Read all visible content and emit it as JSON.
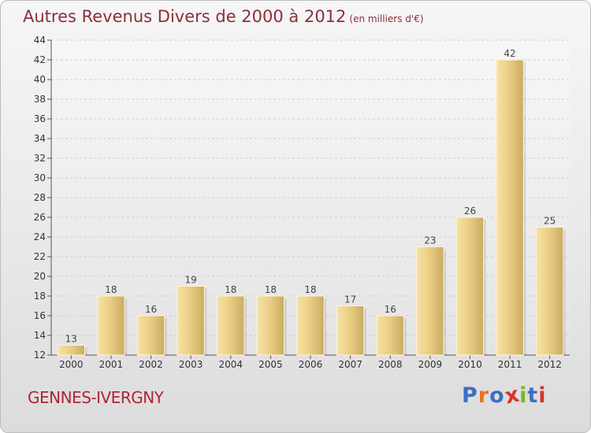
{
  "header": {
    "title": "Autres Revenus Divers de 2000 à 2012",
    "subtitle": "(en milliers d'€)"
  },
  "footer": {
    "commune": "GENNES-IVERGNY",
    "logo": "Proxiti"
  },
  "colors": {
    "title": "#8b2f3a",
    "commune": "#b0243a",
    "bar_light": "#f3dc9a",
    "bar_dark": "#c9ab62",
    "logo": [
      "#3a6fc4",
      "#e8731c",
      "#3a6fc4",
      "#d9342b",
      "#76b82a",
      "#3a6fc4",
      "#d9342b"
    ]
  },
  "chart_data": {
    "type": "bar",
    "categories": [
      "2000",
      "2001",
      "2002",
      "2003",
      "2004",
      "2005",
      "2006",
      "2007",
      "2008",
      "2009",
      "2010",
      "2011",
      "2012"
    ],
    "values": [
      13,
      18,
      16,
      19,
      18,
      18,
      18,
      17,
      16,
      23,
      26,
      42,
      25
    ],
    "ylim": [
      12,
      44
    ],
    "yticks": [
      12,
      14,
      16,
      18,
      20,
      22,
      24,
      26,
      28,
      30,
      32,
      34,
      36,
      38,
      40,
      42,
      44
    ],
    "grid": true
  }
}
